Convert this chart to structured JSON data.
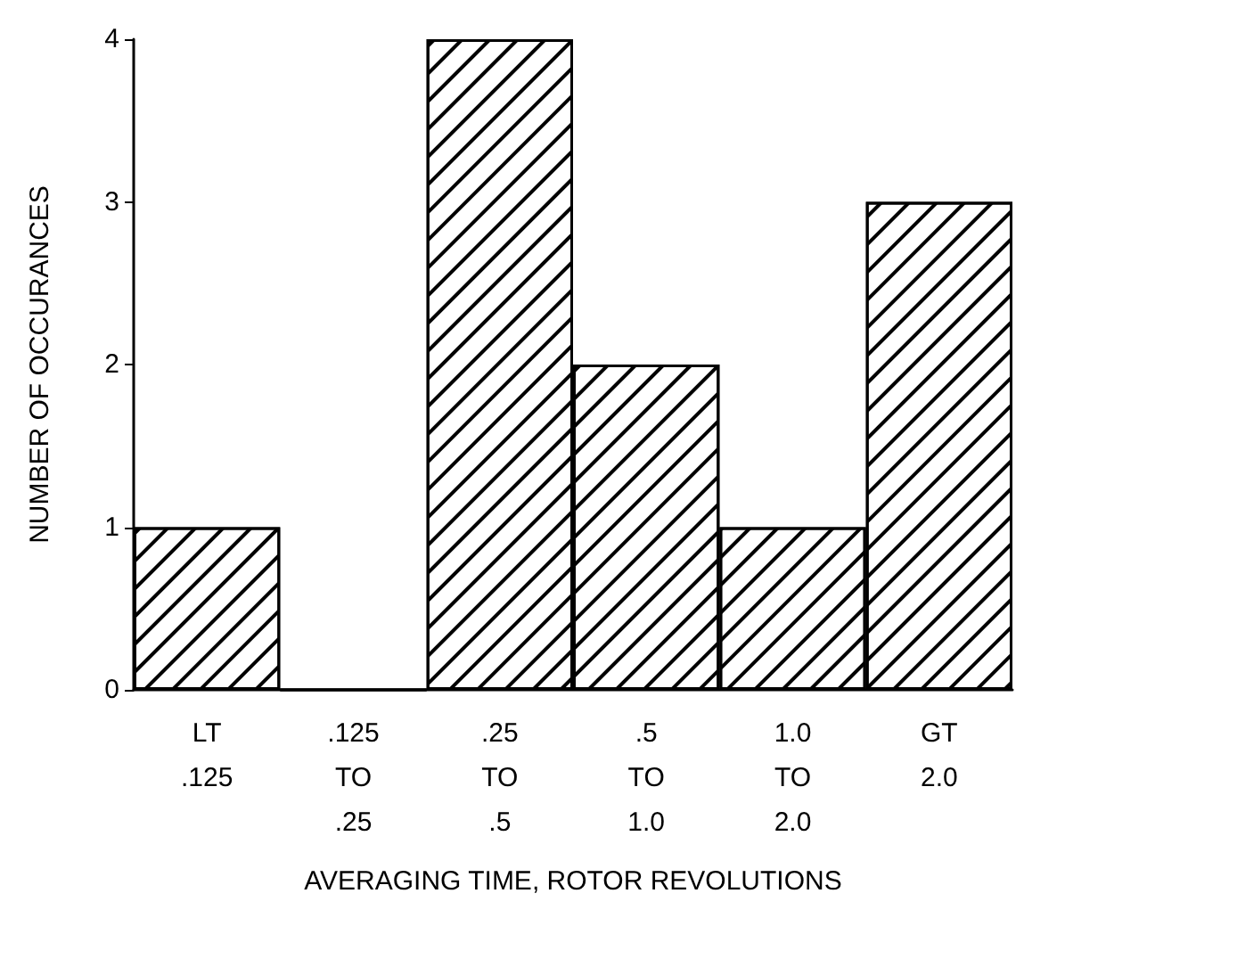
{
  "chart_data": {
    "type": "bar",
    "xlabel": "AVERAGING TIME, ROTOR REVOLUTIONS",
    "ylabel": "NUMBER OF OCCURANCES",
    "categories": [
      "LT\n.125",
      ".125\nTO\n.25",
      ".25\nTO\n.5",
      ".5\nTO\n1.0",
      "1.0\nTO\n2.0",
      "GT\n2.0"
    ],
    "values": [
      1,
      0,
      4,
      2,
      1,
      3
    ],
    "color": "#000000",
    "ylim": [
      0,
      4
    ],
    "yticks": [
      0,
      1,
      2,
      3,
      4
    ]
  }
}
